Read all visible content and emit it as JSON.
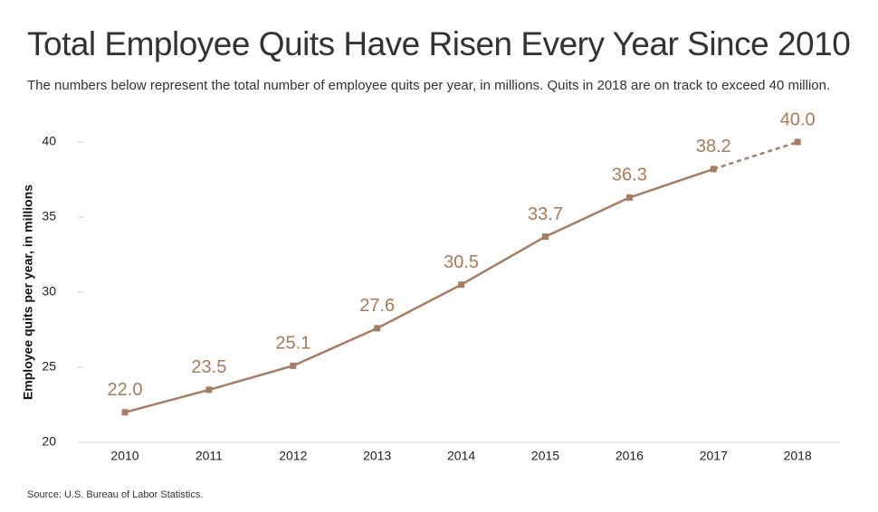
{
  "chart_data": {
    "type": "line",
    "title": "Total Employee Quits Have Risen Every Year Since 2010",
    "subtitle": "The numbers below represent the total number of employee quits per year, in millions. Quits in 2018 are on track to exceed 40 million.",
    "y_label": "Employee quits per year, in millions",
    "source": "Source: U.S. Bureau of Labor Statistics.",
    "categories": [
      "2010",
      "2011",
      "2012",
      "2013",
      "2014",
      "2015",
      "2016",
      "2017",
      "2018"
    ],
    "series": [
      {
        "color": "#a87c60",
        "values": [
          22.0,
          23.5,
          25.1,
          27.6,
          30.5,
          33.7,
          36.3,
          38.2,
          40.0
        ],
        "value_labels": [
          "22.0",
          "23.5",
          "25.1",
          "27.6",
          "30.5",
          "33.7",
          "36.3",
          "38.2",
          "40.0"
        ]
      }
    ],
    "dashed_segments": [
      7
    ],
    "ylim": [
      20,
      40
    ],
    "yticks": [
      20,
      25,
      30,
      35,
      40
    ]
  }
}
